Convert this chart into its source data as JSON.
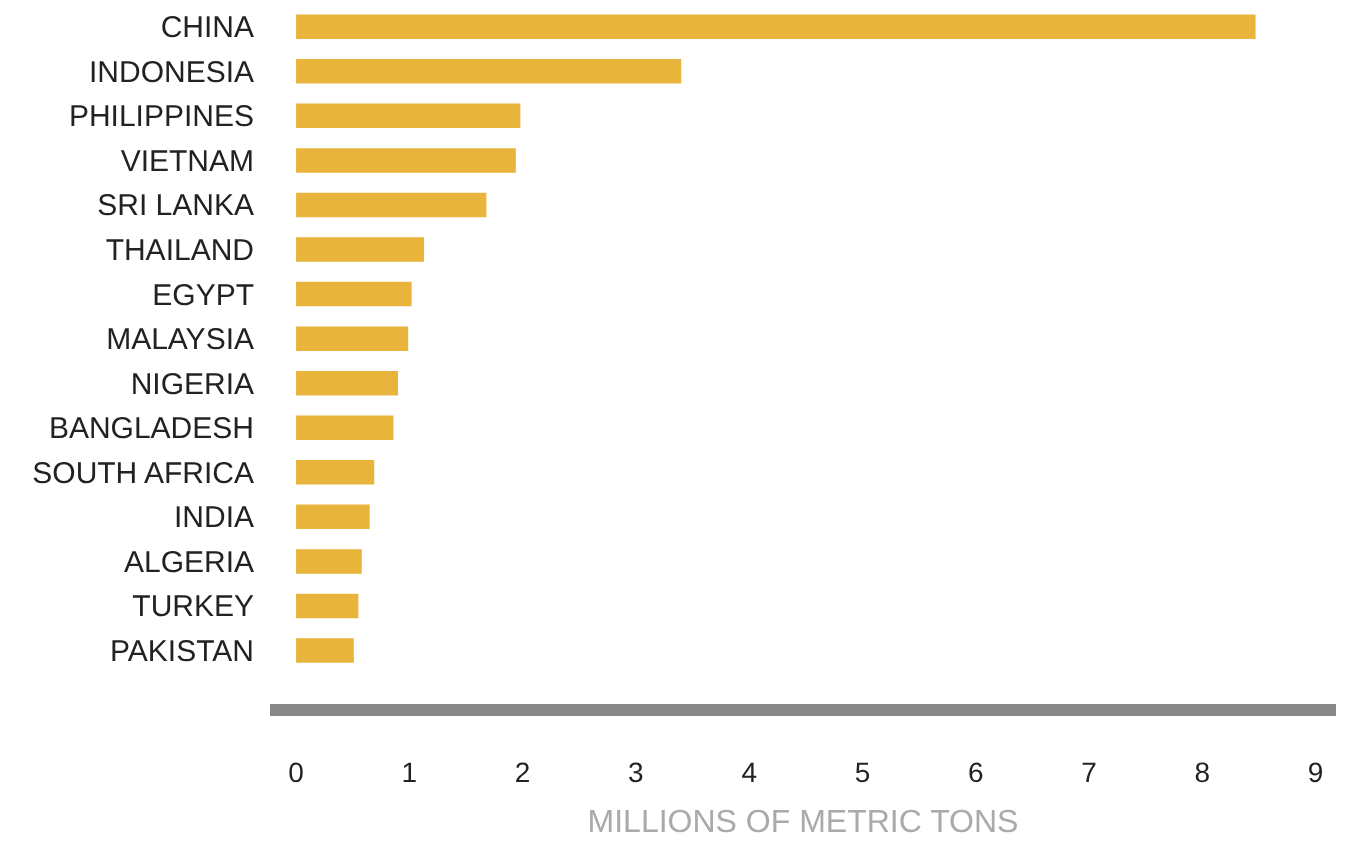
{
  "chart_data": {
    "type": "bar",
    "orientation": "horizontal",
    "xlabel": "MILLIONS OF METRIC TONS",
    "categories": [
      "CHINA",
      "INDONESIA",
      "PHILIPPINES",
      "VIETNAM",
      "SRI LANKA",
      "THAILAND",
      "EGYPT",
      "MALAYSIA",
      "NIGERIA",
      "BANGLADESH",
      "SOUTH AFRICA",
      "INDIA",
      "ALGERIA",
      "TURKEY",
      "PAKISTAN"
    ],
    "values": [
      8.47,
      3.4,
      1.98,
      1.94,
      1.68,
      1.13,
      1.02,
      0.99,
      0.9,
      0.86,
      0.69,
      0.65,
      0.58,
      0.55,
      0.51
    ],
    "color": "#e8b43c",
    "xlim": [
      -0.23,
      9.18
    ],
    "xticks": [
      0,
      1,
      2,
      3,
      4,
      5,
      6,
      7,
      8,
      9
    ],
    "legend": false
  }
}
